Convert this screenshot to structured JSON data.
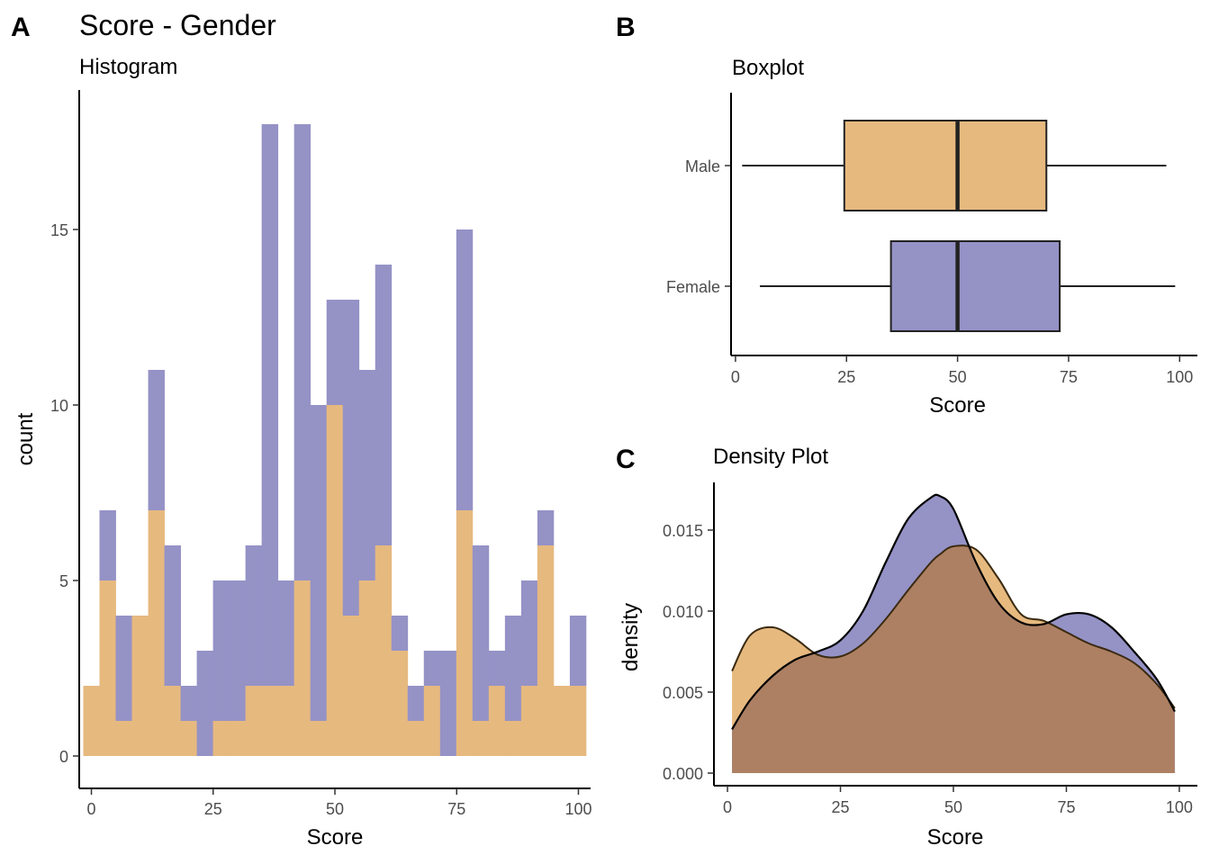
{
  "panels": {
    "a": {
      "tag": "A",
      "title": "Score - Gender",
      "subtitle": "Histogram"
    },
    "b": {
      "tag": "B",
      "subtitle": "Boxplot"
    },
    "c": {
      "tag": "C",
      "subtitle": "Density Plot"
    }
  },
  "colors": {
    "male": "#e6b97f",
    "female": "#9592c6",
    "overlap": "#ad8063",
    "line": "#000000"
  },
  "chart_data": [
    {
      "type": "bar",
      "stacked": true,
      "xlabel": "Score",
      "ylabel": "count",
      "xlim": [
        -2.5,
        102.5
      ],
      "ylim": [
        0,
        18
      ],
      "xticks": [
        0,
        25,
        50,
        75,
        100
      ],
      "yticks": [
        0,
        5,
        10,
        15
      ],
      "bin_width": 3.33,
      "bin_start": -1.67,
      "series": [
        {
          "key": "male",
          "values": [
            2,
            5,
            1,
            4,
            7,
            2,
            1,
            0,
            1,
            1,
            2,
            2,
            2,
            5,
            1,
            10,
            4,
            5,
            6,
            3,
            1,
            2,
            0,
            7,
            1,
            2,
            1,
            2,
            6,
            2,
            2
          ]
        },
        {
          "key": "female",
          "values": [
            0,
            2,
            3,
            0,
            4,
            4,
            1,
            3,
            4,
            4,
            4,
            16,
            3,
            13,
            9,
            3,
            9,
            6,
            8,
            1,
            1,
            1,
            3,
            8,
            5,
            1,
            3,
            3,
            1,
            0,
            2
          ]
        }
      ]
    },
    {
      "type": "boxplot",
      "xlabel": "Score",
      "xlim": [
        -1,
        104
      ],
      "xticks": [
        0,
        25,
        50,
        75,
        100
      ],
      "categories": [
        "Male",
        "Female"
      ],
      "boxes": [
        {
          "key": "male",
          "label": "Male",
          "min": 1.5,
          "q1": 24.5,
          "median": 50,
          "q3": 70,
          "max": 97
        },
        {
          "key": "female",
          "label": "Female",
          "min": 5.5,
          "q1": 35,
          "median": 50,
          "q3": 73,
          "max": 99
        }
      ]
    },
    {
      "type": "area",
      "xlabel": "Score",
      "ylabel": "density",
      "xlim": [
        -3,
        104
      ],
      "ylim": [
        0,
        0.0178
      ],
      "xticks": [
        0,
        25,
        50,
        75,
        100
      ],
      "yticks": [
        0.0,
        0.005,
        0.01,
        0.015
      ],
      "ytick_labels": [
        "0.000",
        "0.005",
        "0.010",
        "0.015"
      ],
      "x": [
        1,
        5,
        10,
        15,
        20,
        25,
        30,
        35,
        40,
        45,
        47,
        50,
        55,
        60,
        65,
        70,
        75,
        80,
        85,
        90,
        95,
        99
      ],
      "series": [
        {
          "key": "male",
          "values": [
            0.0063,
            0.0085,
            0.009,
            0.0083,
            0.0073,
            0.0072,
            0.008,
            0.0095,
            0.0113,
            0.013,
            0.0135,
            0.014,
            0.0138,
            0.012,
            0.0098,
            0.0094,
            0.0087,
            0.008,
            0.0075,
            0.0068,
            0.0055,
            0.004
          ]
        },
        {
          "key": "female",
          "values": [
            0.0027,
            0.0045,
            0.006,
            0.007,
            0.0075,
            0.0082,
            0.01,
            0.013,
            0.0157,
            0.017,
            0.0171,
            0.0163,
            0.013,
            0.0105,
            0.0093,
            0.0092,
            0.0098,
            0.0098,
            0.009,
            0.0075,
            0.0058,
            0.0038
          ]
        }
      ]
    }
  ]
}
